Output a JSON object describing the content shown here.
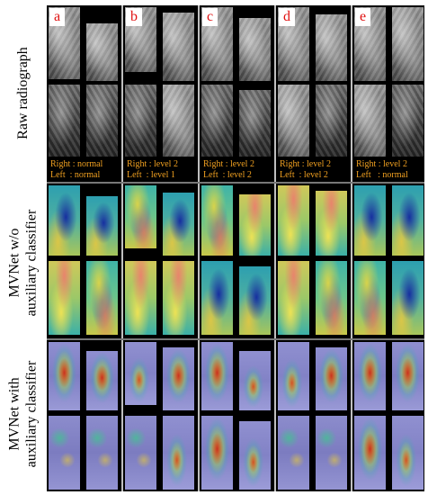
{
  "row_labels": {
    "raw": "Raw radiograph",
    "without_aux_line1": "MVNet w/o",
    "without_aux_line2": "auxiliary classifier",
    "with_aux_line1": "MVNet with",
    "with_aux_line2": "auxiliary classifier"
  },
  "columns": [
    {
      "letter": "a",
      "right": "Right : normal",
      "left": "Left  : normal"
    },
    {
      "letter": "b",
      "right": "Right : level 2",
      "left": "Left  : level 1"
    },
    {
      "letter": "c",
      "right": "Right : level 2",
      "left": "Left  : level 2"
    },
    {
      "letter": "d",
      "right": "Right : level 2",
      "left": "Left  : level 2"
    },
    {
      "letter": "e",
      "right": "Right : level 2",
      "left": "Left   : normal"
    }
  ],
  "colors": {
    "letter_text": "#e01010",
    "grade_text": "#f0a020",
    "panel_background": "#000000"
  }
}
